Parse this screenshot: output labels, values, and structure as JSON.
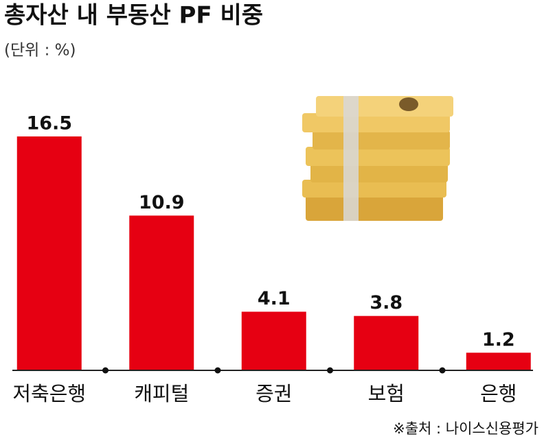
{
  "chart_data": {
    "type": "bar",
    "title": "총자산 내 부동산 PF 비중",
    "subtitle": "(단위 : %)",
    "categories": [
      "저축은행",
      "캐피털",
      "증권",
      "보험",
      "은행"
    ],
    "values": [
      16.5,
      10.9,
      4.1,
      3.8,
      1.2
    ],
    "color": "#e60012",
    "ylim": [
      0,
      18
    ],
    "source": "※출처 : 나이스신용평가"
  }
}
